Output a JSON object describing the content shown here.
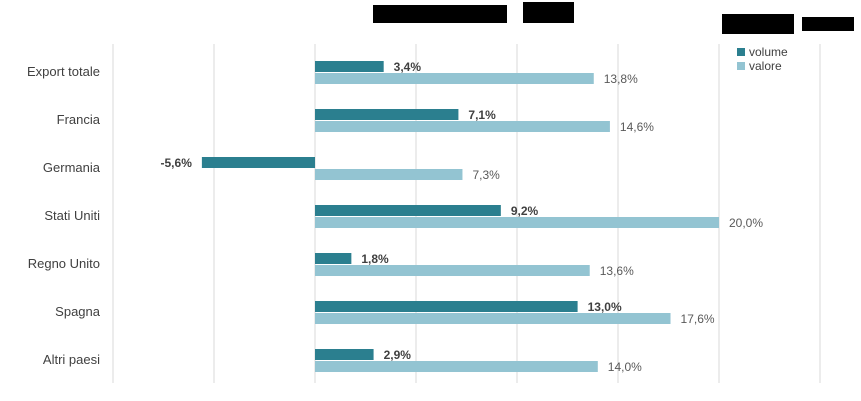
{
  "chart_data": {
    "type": "bar",
    "orientation": "horizontal",
    "categories": [
      "Export totale",
      "Francia",
      "Germania",
      "Stati Uniti",
      "Regno Unito",
      "Spagna",
      "Altri paesi"
    ],
    "series": [
      {
        "name": "volume",
        "color": "#2b7f8f",
        "values": [
          3.4,
          7.1,
          -5.6,
          9.2,
          1.8,
          13.0,
          2.9
        ],
        "labels": [
          "3,4%",
          "7,1%",
          "-5,6%",
          "9,2%",
          "1,8%",
          "13,0%",
          "2,9%"
        ]
      },
      {
        "name": "valore",
        "color": "#93c4d2",
        "values": [
          13.8,
          14.6,
          7.3,
          20.0,
          13.6,
          17.6,
          14.0
        ],
        "labels": [
          "13,8%",
          "14,6%",
          "7,3%",
          "20,0%",
          "13,6%",
          "17,6%",
          "14,0%"
        ]
      }
    ],
    "title": "",
    "xlabel": "",
    "ylabel": "",
    "xlim": [
      -10,
      25
    ],
    "grid": true,
    "legend": "top-right"
  }
}
